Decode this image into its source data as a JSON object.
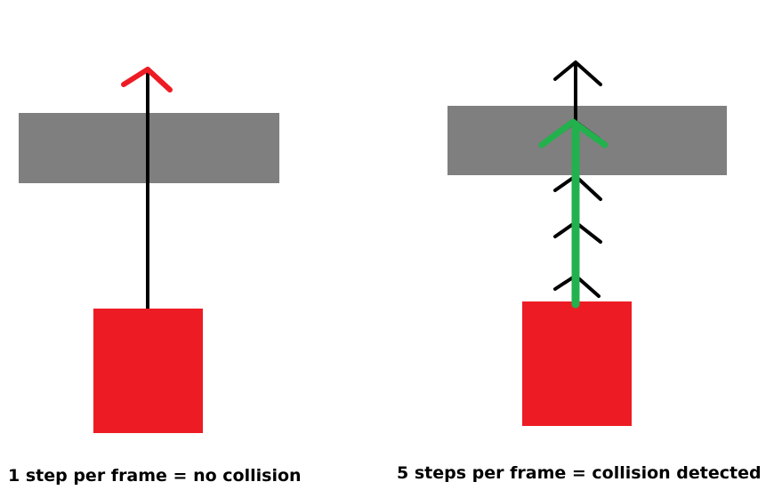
{
  "captions": {
    "left": "1 step per frame = no collision",
    "right": "5 steps per frame = collision detected"
  },
  "colors": {
    "background": "#ffffff",
    "wall": "#7f7f7f",
    "object": "#ed1c24",
    "step_arrow": "#000000",
    "miss_arrowhead": "#ed1c24",
    "hit_arrow": "#22b14c"
  }
}
